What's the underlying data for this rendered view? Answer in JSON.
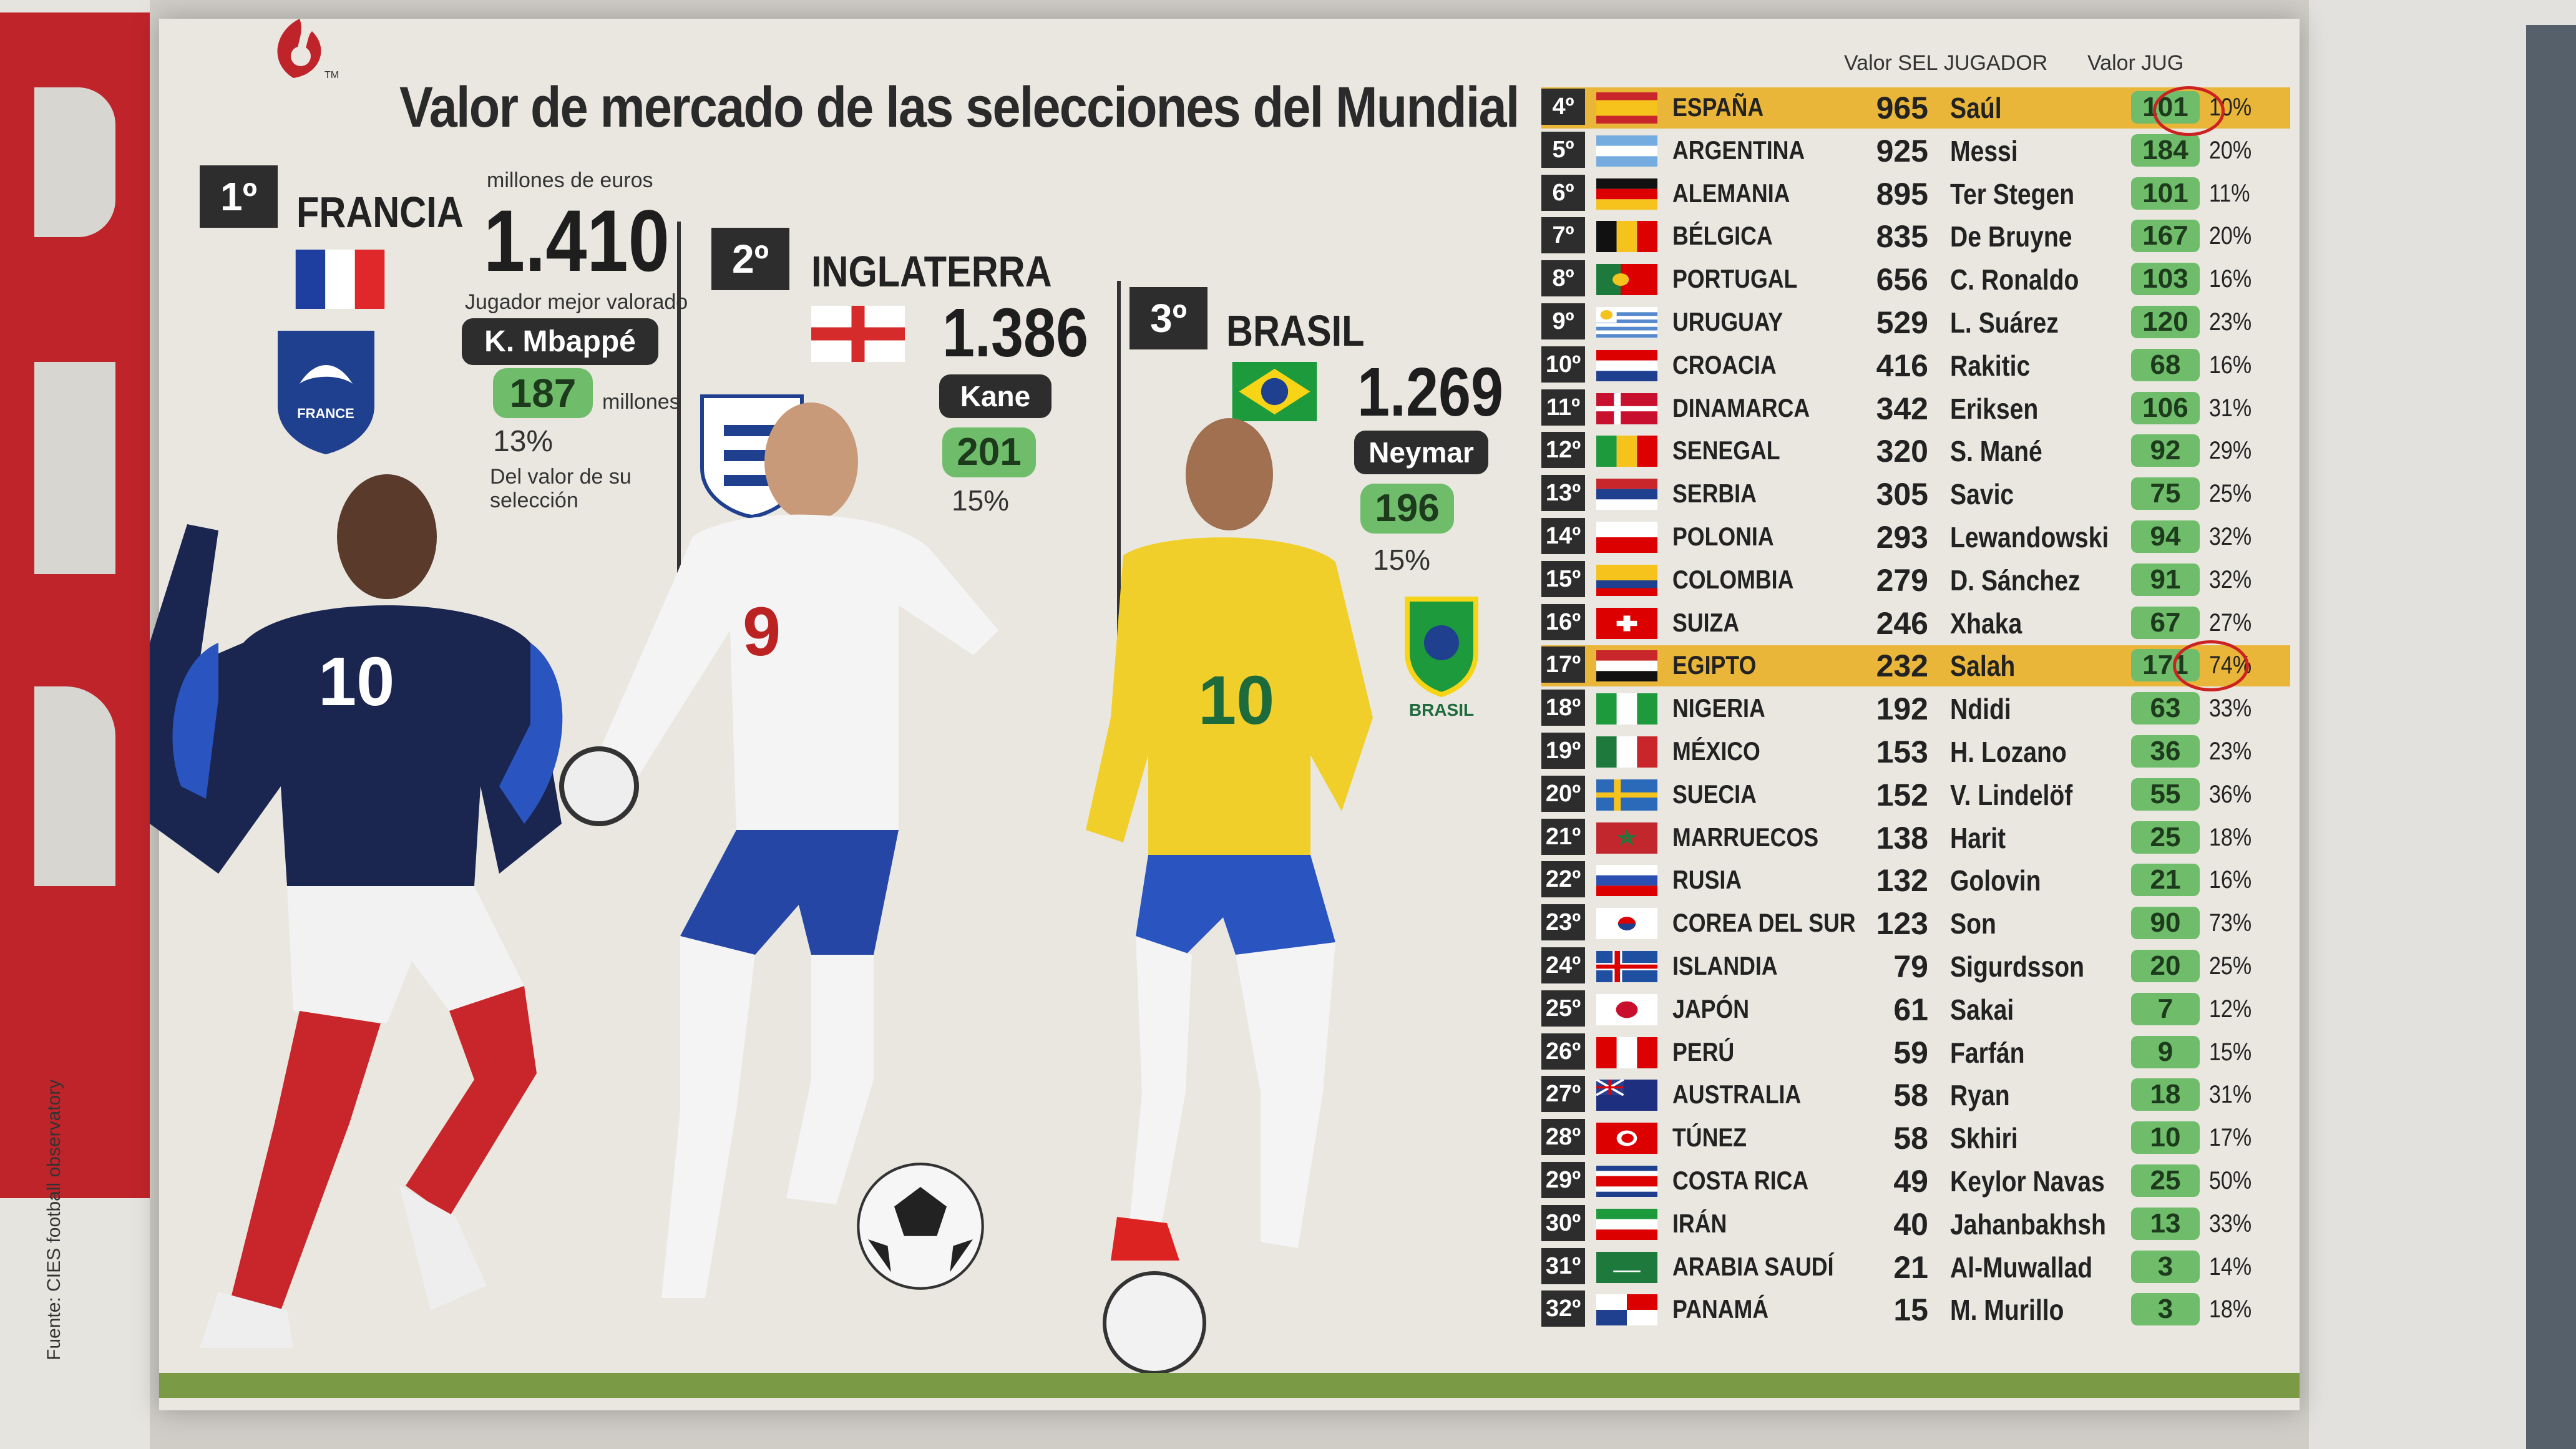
{
  "title": "Valor de mercado de las selecciones del Mundial",
  "header": {
    "valor_sel": "Valor SEL",
    "jugador": "JUGADOR",
    "valor_jug": "Valor JUG"
  },
  "top3": [
    {
      "rank": "1º",
      "country": "FRANCIA",
      "units": "millones de euros",
      "value": "1.410",
      "best_label": "Jugador mejor valorado",
      "player": "K. Mbappé",
      "player_value": "187",
      "player_units": "millones",
      "pct": "13%",
      "pct_note": "Del valor de su selección",
      "badge_text": "FRANCE"
    },
    {
      "rank": "2º",
      "country": "INGLATERRA",
      "value": "1.386",
      "player": "Kane",
      "player_value": "201",
      "pct": "15%"
    },
    {
      "rank": "3º",
      "country": "BRASIL",
      "value": "1.269",
      "player": "Neymar",
      "player_value": "196",
      "pct": "15%",
      "badge_text": "BRASIL"
    }
  ],
  "jersey_numbers": [
    "10",
    "9",
    "10"
  ],
  "source": "Fuente: CIES football observatory",
  "rows": [
    {
      "rank": "4º",
      "country": "ESPAÑA",
      "sel": "965",
      "player": "Saúl",
      "jug": "101",
      "pct": "10%",
      "highlight": true
    },
    {
      "rank": "5º",
      "country": "ARGENTINA",
      "sel": "925",
      "player": "Messi",
      "jug": "184",
      "pct": "20%"
    },
    {
      "rank": "6º",
      "country": "ALEMANIA",
      "sel": "895",
      "player": "Ter Stegen",
      "jug": "101",
      "pct": "11%"
    },
    {
      "rank": "7º",
      "country": "BÉLGICA",
      "sel": "835",
      "player": "De Bruyne",
      "jug": "167",
      "pct": "20%"
    },
    {
      "rank": "8º",
      "country": "PORTUGAL",
      "sel": "656",
      "player": "C. Ronaldo",
      "jug": "103",
      "pct": "16%"
    },
    {
      "rank": "9º",
      "country": "URUGUAY",
      "sel": "529",
      "player": "L. Suárez",
      "jug": "120",
      "pct": "23%"
    },
    {
      "rank": "10º",
      "country": "CROACIA",
      "sel": "416",
      "player": "Rakitic",
      "jug": "68",
      "pct": "16%"
    },
    {
      "rank": "11º",
      "country": "DINAMARCA",
      "sel": "342",
      "player": "Eriksen",
      "jug": "106",
      "pct": "31%"
    },
    {
      "rank": "12º",
      "country": "SENEGAL",
      "sel": "320",
      "player": "S. Mané",
      "jug": "92",
      "pct": "29%"
    },
    {
      "rank": "13º",
      "country": "SERBIA",
      "sel": "305",
      "player": "Savic",
      "jug": "75",
      "pct": "25%"
    },
    {
      "rank": "14º",
      "country": "POLONIA",
      "sel": "293",
      "player": "Lewandowski",
      "jug": "94",
      "pct": "32%"
    },
    {
      "rank": "15º",
      "country": "COLOMBIA",
      "sel": "279",
      "player": "D. Sánchez",
      "jug": "91",
      "pct": "32%"
    },
    {
      "rank": "16º",
      "country": "SUIZA",
      "sel": "246",
      "player": "Xhaka",
      "jug": "67",
      "pct": "27%"
    },
    {
      "rank": "17º",
      "country": "EGIPTO",
      "sel": "232",
      "player": "Salah",
      "jug": "171",
      "pct": "74%",
      "highlight": true
    },
    {
      "rank": "18º",
      "country": "NIGERIA",
      "sel": "192",
      "player": "Ndidi",
      "jug": "63",
      "pct": "33%"
    },
    {
      "rank": "19º",
      "country": "MÉXICO",
      "sel": "153",
      "player": "H. Lozano",
      "jug": "36",
      "pct": "23%"
    },
    {
      "rank": "20º",
      "country": "SUECIA",
      "sel": "152",
      "player": "V. Lindelöf",
      "jug": "55",
      "pct": "36%"
    },
    {
      "rank": "21º",
      "country": "MARRUECOS",
      "sel": "138",
      "player": "Harit",
      "jug": "25",
      "pct": "18%"
    },
    {
      "rank": "22º",
      "country": "RUSIA",
      "sel": "132",
      "player": "Golovin",
      "jug": "21",
      "pct": "16%"
    },
    {
      "rank": "23º",
      "country": "COREA DEL SUR",
      "sel": "123",
      "player": "Son",
      "jug": "90",
      "pct": "73%"
    },
    {
      "rank": "24º",
      "country": "ISLANDIA",
      "sel": "79",
      "player": "Sigurdsson",
      "jug": "20",
      "pct": "25%"
    },
    {
      "rank": "25º",
      "country": "JAPÓN",
      "sel": "61",
      "player": "Sakai",
      "jug": "7",
      "pct": "12%"
    },
    {
      "rank": "26º",
      "country": "PERÚ",
      "sel": "59",
      "player": "Farfán",
      "jug": "9",
      "pct": "15%"
    },
    {
      "rank": "27º",
      "country": "AUSTRALIA",
      "sel": "58",
      "player": "Ryan",
      "jug": "18",
      "pct": "31%"
    },
    {
      "rank": "28º",
      "country": "TÚNEZ",
      "sel": "58",
      "player": "Skhiri",
      "jug": "10",
      "pct": "17%"
    },
    {
      "rank": "29º",
      "country": "COSTA RICA",
      "sel": "49",
      "player": "Keylor Navas",
      "jug": "25",
      "pct": "50%"
    },
    {
      "rank": "30º",
      "country": "IRÁN",
      "sel": "40",
      "player": "Jahanbakhsh",
      "jug": "13",
      "pct": "33%"
    },
    {
      "rank": "31º",
      "country": "ARABIA SAUDÍ",
      "sel": "21",
      "player": "Al-Muwallad",
      "jug": "3",
      "pct": "14%"
    },
    {
      "rank": "32º",
      "country": "PANAMÁ",
      "sel": "15",
      "player": "M. Murillo",
      "jug": "3",
      "pct": "18%"
    }
  ],
  "flags": [
    "spain",
    "argentina",
    "germany",
    "belgium",
    "portugal",
    "uruguay",
    "croatia",
    "denmark",
    "senegal",
    "serbia",
    "poland",
    "colombia",
    "switzerland",
    "egypt",
    "nigeria",
    "mexico",
    "sweden",
    "morocco",
    "russia",
    "korea",
    "iceland",
    "japan",
    "peru",
    "australia",
    "tunisia",
    "costa-rica",
    "iran",
    "saudi",
    "panama"
  ],
  "colors": {
    "highlight": "#e9b63a",
    "green_pill": "#6fbd6a",
    "dark": "#2d2d2d",
    "newspaper_red": "#c0242b"
  }
}
